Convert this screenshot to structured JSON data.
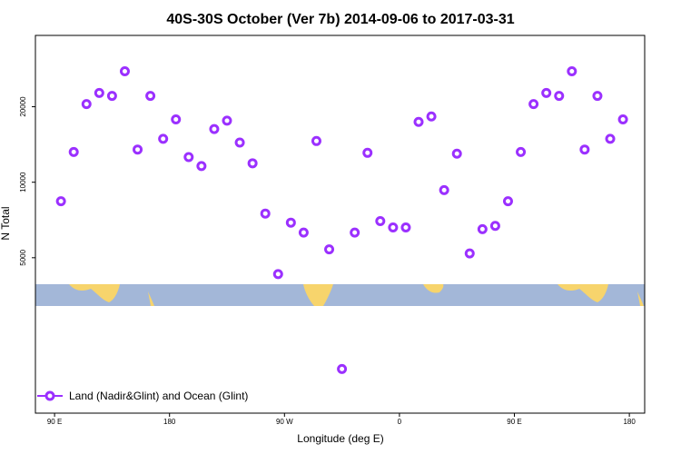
{
  "chart_data": {
    "type": "scatter",
    "title": "40S-30S October (Ver 7b)   2014-09-06 to 2017-03-31",
    "xlabel": "Longitude (deg E)",
    "ylabel": "N Total",
    "x_ticks": [
      {
        "value": 90,
        "label": "90 E"
      },
      {
        "value": 180,
        "label": "180"
      },
      {
        "value": 270,
        "label": "90 W"
      },
      {
        "value": 360,
        "label": "0"
      },
      {
        "value": 450,
        "label": "90 E"
      },
      {
        "value": 540,
        "label": "180"
      }
    ],
    "y_ticks": [
      {
        "value": 5000,
        "label": "5000"
      },
      {
        "value": 10000,
        "label": "10000"
      },
      {
        "value": 20000,
        "label": "20000"
      }
    ],
    "xlim": [
      90,
      540
    ],
    "ylim": [
      1700,
      33000
    ],
    "y_scale": "log",
    "grid": false,
    "legend_position": "bottom-left",
    "series": [
      {
        "name": "Land (Nadir&Glint) and Ocean (Glint)",
        "color": "#9b30ff",
        "marker": "open-circle",
        "x": [
          95,
          105,
          115,
          125,
          135,
          145,
          155,
          165,
          175,
          185,
          195,
          205,
          215,
          225,
          235,
          245,
          255,
          265,
          275,
          285,
          295,
          305,
          315,
          325,
          335,
          345,
          355,
          365,
          375,
          385,
          395,
          405,
          415,
          425,
          435,
          445,
          455,
          465,
          475,
          485,
          495,
          505,
          515,
          525,
          535
        ],
        "y": [
          8400,
          13200,
          20500,
          22700,
          22100,
          27700,
          13500,
          22100,
          14900,
          17800,
          12600,
          11600,
          16300,
          17600,
          14400,
          11900,
          7500,
          4300,
          6900,
          6300,
          14600,
          5400,
          1800,
          6300,
          13100,
          7000,
          6600,
          6600,
          17400,
          18300,
          9300,
          13000,
          5200,
          6500,
          6700,
          8400,
          13200,
          20500,
          22700,
          22100,
          27700,
          13500,
          22100,
          14900,
          17800
        ]
      }
    ]
  },
  "colors": {
    "ocean_strip": "#a3b7d8",
    "land_strip": "#f7d46c",
    "frame": "#000000"
  }
}
